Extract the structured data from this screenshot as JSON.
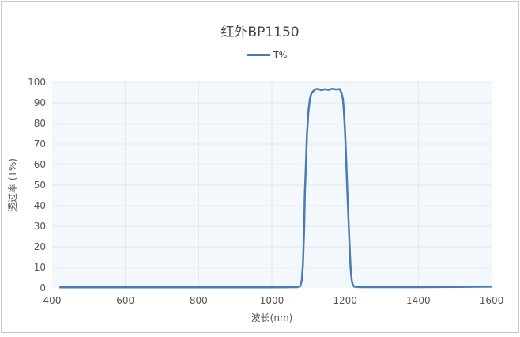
{
  "chart_data": {
    "type": "line",
    "title": "红外BP1150",
    "xlabel": "波长(nm)",
    "ylabel": "透过率 (T%)",
    "xlim": [
      400,
      1600
    ],
    "ylim": [
      0,
      100
    ],
    "xticks": [
      400,
      600,
      800,
      1000,
      1200,
      1400,
      1600
    ],
    "yticks": [
      0,
      10,
      20,
      30,
      40,
      50,
      60,
      70,
      80,
      90,
      100
    ],
    "grid": true,
    "legend_position": "top-center",
    "series": [
      {
        "name": "T%",
        "color": "#4a7ab8",
        "x": [
          420,
          600,
          800,
          1000,
          1070,
          1078,
          1082,
          1085,
          1088,
          1090,
          1093,
          1096,
          1100,
          1104,
          1108,
          1112,
          1118,
          1125,
          1135,
          1145,
          1155,
          1165,
          1175,
          1185,
          1190,
          1194,
          1197,
          1200,
          1203,
          1206,
          1209,
          1212,
          1215,
          1218,
          1221,
          1225,
          1240,
          1300,
          1400,
          1500,
          1600
        ],
        "y": [
          0.3,
          0.3,
          0.3,
          0.3,
          0.4,
          1,
          4,
          12,
          28,
          45,
          60,
          75,
          86,
          92,
          94.5,
          95.5,
          96.5,
          96.8,
          96.2,
          96.6,
          96.3,
          96.9,
          96.5,
          96.7,
          95,
          92,
          85,
          75,
          62,
          48,
          35,
          22,
          10,
          4,
          1.5,
          0.6,
          0.4,
          0.4,
          0.4,
          0.5,
          0.6
        ]
      }
    ]
  },
  "colors": {
    "plot_bg": "#f3f8fc",
    "grid": "#e4e8ec",
    "line": "#4a7ab8"
  }
}
